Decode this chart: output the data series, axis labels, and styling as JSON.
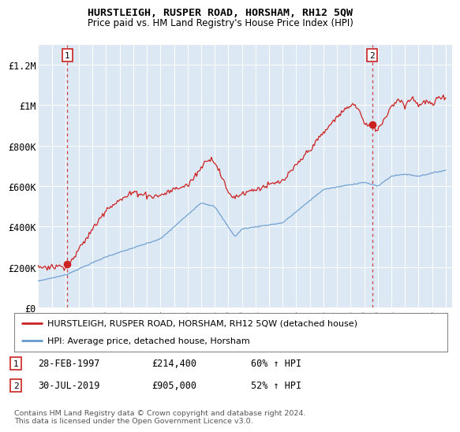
{
  "title": "HURSTLEIGH, RUSPER ROAD, HORSHAM, RH12 5QW",
  "subtitle": "Price paid vs. HM Land Registry's House Price Index (HPI)",
  "background_color": "#ffffff",
  "plot_bg_color": "#dce9f5",
  "red_line_color": "#cc2222",
  "blue_line_color": "#6699cc",
  "grid_color": "#ffffff",
  "ylim": [
    0,
    1300000
  ],
  "yticks": [
    0,
    200000,
    400000,
    600000,
    800000,
    1000000,
    1200000
  ],
  "ytick_labels": [
    "£0",
    "£200K",
    "£400K",
    "£600K",
    "£800K",
    "£1M",
    "£1.2M"
  ],
  "xmin_year": 1995.0,
  "xmax_year": 2025.5,
  "annotation1": {
    "label": "1",
    "x_year": 1997.15,
    "y": 214400,
    "date": "28-FEB-1997",
    "price": "£214,400",
    "hpi": "60% ↑ HPI"
  },
  "annotation2": {
    "label": "2",
    "x_year": 2019.58,
    "y": 905000,
    "date": "30-JUL-2019",
    "price": "£905,000",
    "hpi": "52% ↑ HPI"
  },
  "legend_red": "HURSTLEIGH, RUSPER ROAD, HORSHAM, RH12 5QW (detached house)",
  "legend_blue": "HPI: Average price, detached house, Horsham",
  "footer": "Contains HM Land Registry data © Crown copyright and database right 2024.\nThis data is licensed under the Open Government Licence v3.0.",
  "xtick_years": [
    1995,
    1996,
    1997,
    1998,
    1999,
    2000,
    2001,
    2002,
    2003,
    2004,
    2005,
    2006,
    2007,
    2008,
    2009,
    2010,
    2011,
    2012,
    2013,
    2014,
    2015,
    2016,
    2017,
    2018,
    2019,
    2020,
    2021,
    2022,
    2023,
    2024,
    2025
  ]
}
